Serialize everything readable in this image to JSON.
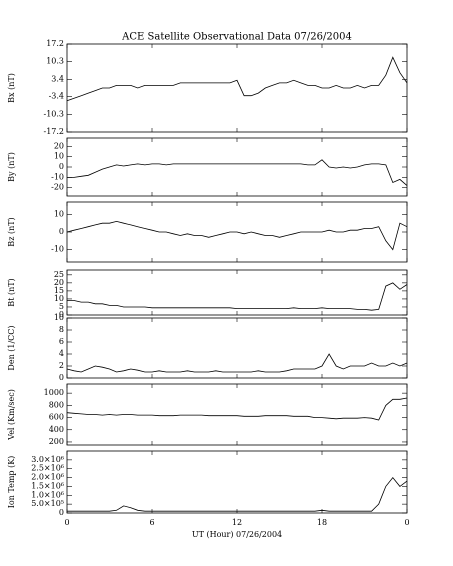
{
  "chart_data": [
    {
      "type": "line",
      "title": "ACE Satellite Observational Data   07/26/2004",
      "ylabel": "Bx (nT)",
      "x": [
        0,
        0.5,
        1,
        1.5,
        2,
        2.5,
        3,
        3.5,
        4,
        4.5,
        5,
        5.5,
        6,
        6.5,
        7,
        7.5,
        8,
        8.5,
        9,
        9.5,
        10,
        10.5,
        11,
        11.5,
        12,
        12.5,
        13,
        13.5,
        14,
        14.5,
        15,
        15.5,
        16,
        16.5,
        17,
        17.5,
        18,
        18.5,
        19,
        19.5,
        20,
        20.5,
        21,
        21.5,
        22,
        22.5,
        23,
        23.5,
        24
      ],
      "values": [
        -5,
        -4,
        -3,
        -2,
        -1,
        0,
        0,
        1,
        1,
        1,
        0,
        1,
        1,
        1,
        1,
        1,
        2,
        2,
        2,
        2,
        2,
        2,
        2,
        2,
        3,
        -3,
        -3,
        -2,
        0,
        1,
        2,
        2,
        3,
        2,
        1,
        1,
        0,
        0,
        1,
        0,
        0,
        1,
        0,
        1,
        1,
        5,
        12,
        6,
        2
      ],
      "ylim": [
        -17.2,
        17.2
      ],
      "yticks": [
        -17.2,
        -10.3,
        -3.4,
        3.4,
        10.3,
        17.2
      ]
    },
    {
      "type": "line",
      "ylabel": "By (nT)",
      "x": [
        0,
        0.5,
        1,
        1.5,
        2,
        2.5,
        3,
        3.5,
        4,
        4.5,
        5,
        5.5,
        6,
        6.5,
        7,
        7.5,
        8,
        8.5,
        9,
        9.5,
        10,
        10.5,
        11,
        11.5,
        12,
        12.5,
        13,
        13.5,
        14,
        14.5,
        15,
        15.5,
        16,
        16.5,
        17,
        17.5,
        18,
        18.5,
        19,
        19.5,
        20,
        20.5,
        21,
        21.5,
        22,
        22.5,
        23,
        23.5,
        24
      ],
      "values": [
        -10,
        -10,
        -9,
        -8,
        -5,
        -2,
        0,
        2,
        1,
        2,
        3,
        2,
        3,
        3,
        2,
        3,
        3,
        3,
        3,
        3,
        3,
        3,
        3,
        3,
        3,
        3,
        3,
        3,
        3,
        3,
        3,
        3,
        3,
        3,
        2,
        2,
        7,
        0,
        -1,
        0,
        -1,
        0,
        2,
        3,
        3,
        2,
        -15,
        -12,
        -18
      ],
      "ylim": [
        -28,
        28
      ],
      "yticks": [
        -20,
        -10,
        0,
        10,
        20
      ]
    },
    {
      "type": "line",
      "ylabel": "Bz (nT)",
      "x": [
        0,
        0.5,
        1,
        1.5,
        2,
        2.5,
        3,
        3.5,
        4,
        4.5,
        5,
        5.5,
        6,
        6.5,
        7,
        7.5,
        8,
        8.5,
        9,
        9.5,
        10,
        10.5,
        11,
        11.5,
        12,
        12.5,
        13,
        13.5,
        14,
        14.5,
        15,
        15.5,
        16,
        16.5,
        17,
        17.5,
        18,
        18.5,
        19,
        19.5,
        20,
        20.5,
        21,
        21.5,
        22,
        22.5,
        23,
        23.5,
        24
      ],
      "values": [
        0,
        1,
        2,
        3,
        4,
        5,
        5,
        6,
        5,
        4,
        3,
        2,
        1,
        0,
        0,
        -1,
        -2,
        -1,
        -2,
        -2,
        -3,
        -2,
        -1,
        0,
        0,
        -1,
        0,
        -1,
        -2,
        -2,
        -3,
        -2,
        -1,
        0,
        0,
        0,
        0,
        1,
        0,
        0,
        1,
        1,
        2,
        2,
        3,
        -5,
        -10,
        5,
        3
      ],
      "ylim": [
        -17,
        17
      ],
      "yticks": [
        -10,
        0,
        10
      ]
    },
    {
      "type": "line",
      "ylabel": "Bt (nT)",
      "x": [
        0,
        0.5,
        1,
        1.5,
        2,
        2.5,
        3,
        3.5,
        4,
        4.5,
        5,
        5.5,
        6,
        6.5,
        7,
        7.5,
        8,
        8.5,
        9,
        9.5,
        10,
        10.5,
        11,
        11.5,
        12,
        12.5,
        13,
        13.5,
        14,
        14.5,
        15,
        15.5,
        16,
        16.5,
        17,
        17.5,
        18,
        18.5,
        19,
        19.5,
        20,
        20.5,
        21,
        21.5,
        22,
        22.5,
        23,
        23.5,
        24
      ],
      "values": [
        9,
        9,
        8,
        8,
        7,
        7,
        6,
        6,
        5,
        5,
        5,
        5,
        4.5,
        4.5,
        4.5,
        4.5,
        4.5,
        4.5,
        4.5,
        4.5,
        4.5,
        4.5,
        4.5,
        4.5,
        4,
        4,
        4,
        4,
        4,
        4,
        4,
        4,
        4.5,
        4,
        4,
        4,
        4.5,
        4,
        4,
        4,
        4,
        3.5,
        3.5,
        3,
        3.5,
        18,
        20,
        16,
        19
      ],
      "ylim": [
        0,
        28
      ],
      "yticks": [
        0,
        5,
        10,
        15,
        20,
        25
      ]
    },
    {
      "type": "line",
      "ylabel": "Den (1/CC)",
      "x": [
        0,
        0.5,
        1,
        1.5,
        2,
        2.5,
        3,
        3.5,
        4,
        4.5,
        5,
        5.5,
        6,
        6.5,
        7,
        7.5,
        8,
        8.5,
        9,
        9.5,
        10,
        10.5,
        11,
        11.5,
        12,
        12.5,
        13,
        13.5,
        14,
        14.5,
        15,
        15.5,
        16,
        16.5,
        17,
        17.5,
        18,
        18.5,
        19,
        19.5,
        20,
        20.5,
        21,
        21.5,
        22,
        22.5,
        23,
        23.5,
        24
      ],
      "values": [
        1.5,
        1.2,
        1,
        1.5,
        2,
        1.8,
        1.5,
        1,
        1.2,
        1.5,
        1.3,
        1,
        1,
        1.2,
        1,
        1,
        1,
        1.2,
        1,
        1,
        1,
        1.2,
        1,
        1,
        1,
        1,
        1,
        1.2,
        1,
        1,
        1,
        1.2,
        1.5,
        1.5,
        1.5,
        1.5,
        2,
        4,
        2,
        1.5,
        2,
        2,
        2,
        2.5,
        2,
        2,
        2.5,
        2,
        2.5
      ],
      "ylim": [
        0,
        10
      ],
      "yticks": [
        0,
        2,
        4,
        6,
        8,
        10
      ]
    },
    {
      "type": "line",
      "ylabel": "Vel (Km/sec)",
      "x": [
        0,
        0.5,
        1,
        1.5,
        2,
        2.5,
        3,
        3.5,
        4,
        4.5,
        5,
        5.5,
        6,
        6.5,
        7,
        7.5,
        8,
        8.5,
        9,
        9.5,
        10,
        10.5,
        11,
        11.5,
        12,
        12.5,
        13,
        13.5,
        14,
        14.5,
        15,
        15.5,
        16,
        16.5,
        17,
        17.5,
        18,
        18.5,
        19,
        19.5,
        20,
        20.5,
        21,
        21.5,
        22,
        22.5,
        23,
        23.5,
        24
      ],
      "values": [
        680,
        670,
        660,
        650,
        650,
        640,
        650,
        640,
        650,
        650,
        640,
        640,
        640,
        630,
        630,
        630,
        640,
        640,
        640,
        640,
        630,
        630,
        630,
        630,
        630,
        620,
        620,
        620,
        630,
        630,
        630,
        630,
        620,
        620,
        620,
        600,
        600,
        590,
        580,
        590,
        590,
        590,
        600,
        590,
        560,
        800,
        900,
        900,
        920
      ],
      "ylim": [
        150,
        1150
      ],
      "yticks": [
        200,
        400,
        600,
        800,
        1000
      ]
    },
    {
      "type": "line",
      "ylabel": "Ion Temp (K)",
      "xlabel": "UT (Hour)  07/26/2004",
      "x": [
        0,
        0.5,
        1,
        1.5,
        2,
        2.5,
        3,
        3.5,
        4,
        4.5,
        5,
        5.5,
        6,
        6.5,
        7,
        7.5,
        8,
        8.5,
        9,
        9.5,
        10,
        10.5,
        11,
        11.5,
        12,
        12.5,
        13,
        13.5,
        14,
        14.5,
        15,
        15.5,
        16,
        16.5,
        17,
        17.5,
        18,
        18.5,
        19,
        19.5,
        20,
        20.5,
        21,
        21.5,
        22,
        22.5,
        23,
        23.5,
        24
      ],
      "values": [
        100000,
        100000,
        100000,
        100000,
        100000,
        100000,
        100000,
        150000,
        400000,
        300000,
        150000,
        100000,
        100000,
        100000,
        100000,
        100000,
        100000,
        100000,
        100000,
        100000,
        100000,
        100000,
        100000,
        100000,
        100000,
        100000,
        100000,
        100000,
        100000,
        100000,
        100000,
        100000,
        100000,
        100000,
        100000,
        100000,
        150000,
        100000,
        100000,
        100000,
        100000,
        100000,
        100000,
        100000,
        500000,
        1500000,
        2000000,
        1500000,
        1800000
      ],
      "ylim": [
        0,
        3500000
      ],
      "yticks": [
        0,
        {
          "value": 500000,
          "label": "5.0×10⁵"
        },
        {
          "value": 1000000,
          "label": "1.0×10⁶"
        },
        {
          "value": 1500000,
          "label": "1.5×10⁶"
        },
        {
          "value": 2000000,
          "label": "2.0×10⁶"
        },
        {
          "value": 2500000,
          "label": "2.5×10⁶"
        },
        {
          "value": 3000000,
          "label": "3.0×10⁶"
        }
      ],
      "xlim": [
        0,
        24
      ],
      "xticks": [
        0,
        6,
        12,
        18,
        {
          "value": 24,
          "label": "0"
        }
      ]
    }
  ]
}
